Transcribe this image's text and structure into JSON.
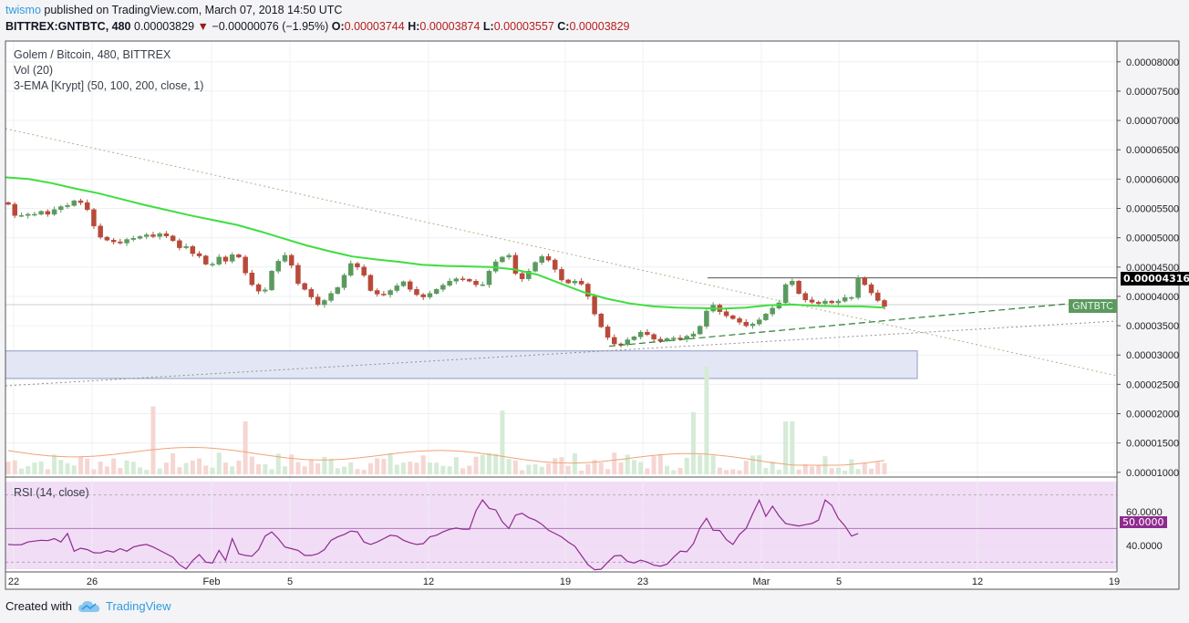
{
  "header": {
    "user": "twismo",
    "published_text": "published on TradingView.com, March 07, 2018 14:50 UTC",
    "symbol_line": "BITTREX:GNTBTC, 480",
    "last": "0.00003829",
    "change_arrow": "▼",
    "change": "−0.00000076 (−1.95%)",
    "o_label": "O:",
    "o_value": "0.00003744",
    "h_label": "H:",
    "h_value": "0.00003874",
    "l_label": "L:",
    "l_value": "0.00003557",
    "c_label": "C:",
    "c_value": "0.00003829"
  },
  "legend": {
    "line1": "Golem / Bitcoin, 480, BITTREX",
    "line2": "Vol (20)",
    "line3": "3-EMA [Krypt] (50, 100, 200, close, 1)"
  },
  "rsi_legend": "RSI (14, close)",
  "price_tags": {
    "horizontal_level": "0.00004316",
    "symbol_tag": "GNTBTC",
    "rsi_value": "50.0000"
  },
  "footer": {
    "created_with": "Created with",
    "brand": "TradingView"
  },
  "colors": {
    "up": "#5b9a5f",
    "down": "#b84a3a",
    "ema": "#3ede3e",
    "rsi": "#8e2a8e",
    "rsi_band": "#f1ddf6",
    "zone_fill": "#e3e7f5",
    "zone_stroke": "#8f9bc4"
  },
  "chart_data": [
    {
      "type": "candlestick",
      "title": "Golem / Bitcoin, 480, BITTREX",
      "y_axis_ticks": [
        "0.00008000",
        "0.00007500",
        "0.00007000",
        "0.00006500",
        "0.00006000",
        "0.00005500",
        "0.00005000",
        "0.00004500",
        "0.00004000",
        "0.00003500",
        "0.00003000",
        "0.00002500",
        "0.00002000",
        "0.00001500",
        "0.00001000"
      ],
      "x_axis_ticks": [
        "22",
        "26",
        "Feb",
        "5",
        "12",
        "19",
        "23",
        "Mar",
        "5",
        "12",
        "19"
      ],
      "ylim": [
        9.35e-06,
        8.354e-05
      ],
      "close": [
        5.57e-05,
        5.38e-05,
        5.38e-05,
        5.4e-05,
        5.4e-05,
        5.45e-05,
        5.4e-05,
        5.48e-05,
        5.53e-05,
        5.55e-05,
        5.63e-05,
        5.6e-05,
        5.48e-05,
        5.2e-05,
        5.01e-05,
        4.96e-05,
        4.93e-05,
        4.91e-05,
        4.97e-05,
        4.99e-05,
        5.02e-05,
        5.05e-05,
        5.02e-05,
        5.07e-05,
        5.03e-05,
        4.95e-05,
        4.83e-05,
        4.85e-05,
        4.73e-05,
        4.69e-05,
        4.55e-05,
        4.55e-05,
        4.67e-05,
        4.6e-05,
        4.71e-05,
        4.67e-05,
        4.4e-05,
        4.2e-05,
        4.09e-05,
        4.11e-05,
        4.43e-05,
        4.6e-05,
        4.7e-05,
        4.53e-05,
        4.22e-05,
        4.12e-05,
        3.99e-05,
        3.86e-05,
        3.93e-05,
        4.05e-05,
        4.15e-05,
        4.36e-05,
        4.56e-05,
        4.5e-05,
        4.36e-05,
        4.1e-05,
        4.04e-05,
        4.03e-05,
        4.1e-05,
        4.18e-05,
        4.25e-05,
        4.12e-05,
        4.03e-05,
        3.99e-05,
        4.05e-05,
        4.12e-05,
        4.19e-05,
        4.26e-05,
        4.3e-05,
        4.29e-05,
        4.26e-05,
        4.2e-05,
        4.2e-05,
        4.43e-05,
        4.59e-05,
        4.67e-05,
        4.7e-05,
        4.39e-05,
        4.3e-05,
        4.43e-05,
        4.58e-05,
        4.68e-05,
        4.62e-05,
        4.46e-05,
        4.28e-05,
        4.23e-05,
        4.26e-05,
        4.21e-05,
        4e-05,
        3.7e-05,
        3.48e-05,
        3.3e-05,
        3.19e-05,
        3.18e-05,
        3.26e-05,
        3.31e-05,
        3.39e-05,
        3.35e-05,
        3.27e-05,
        3.24e-05,
        3.28e-05,
        3.29e-05,
        3.27e-05,
        3.32e-05,
        3.36e-05,
        3.49e-05,
        3.75e-05,
        3.85e-05,
        3.74e-05,
        3.67e-05,
        3.62e-05,
        3.56e-05,
        3.5e-05,
        3.53e-05,
        3.6e-05,
        3.7e-05,
        3.8e-05,
        3.89e-05,
        4.2e-05,
        4.26e-05,
        4.05e-05,
        3.94e-05,
        3.9e-05,
        3.88e-05,
        3.92e-05,
        3.89e-05,
        3.92e-05,
        3.98e-05,
        3.98e-05,
        4.32e-05,
        4.2e-05,
        4.06e-05,
        3.93e-05,
        3.83e-05
      ],
      "ema": [
        6.03e-05,
        6e-05,
        5.93e-05,
        5.84e-05,
        5.76e-05,
        5.66e-05,
        5.56e-05,
        5.47e-05,
        5.38e-05,
        5.3e-05,
        5.22e-05,
        5.11e-05,
        4.99e-05,
        4.87e-05,
        4.77e-05,
        4.68e-05,
        4.63e-05,
        4.59e-05,
        4.54e-05,
        4.52e-05,
        4.51e-05,
        4.5e-05,
        4.46e-05,
        4.37e-05,
        4.22e-05,
        4.07e-05,
        3.96e-05,
        3.88e-05,
        3.83e-05,
        3.81e-05,
        3.8e-05,
        3.79e-05,
        3.81e-05,
        3.85e-05,
        3.86e-05,
        3.84e-05,
        3.83e-05,
        3.83e-05,
        3.81e-05
      ],
      "volume_ma_label": "Vol (20)",
      "trendlines": "descending dotted line from top-left; dashed green ascending support; horizontal resistance at 0.00004316; shaded demand zone around 0.00002600–0.00003070"
    },
    {
      "type": "line",
      "title": "RSI (14, close)",
      "y_axis_ticks": [
        "60.0000",
        "40.0000"
      ],
      "ylim": [
        24.2,
        79.5
      ],
      "values": [
        40.5,
        40.3,
        40.4,
        42,
        42.5,
        43,
        42.8,
        44,
        42,
        47,
        36.5,
        38.3,
        37.5,
        35.6,
        35.5,
        36.8,
        36,
        38,
        36.5,
        39,
        40,
        40.5,
        39,
        37,
        35,
        33,
        28.5,
        26,
        31,
        34.5,
        30,
        29.5,
        37,
        31,
        44,
        35,
        34,
        33.5,
        37.5,
        45.5,
        48,
        44,
        39,
        38,
        37,
        34,
        34,
        35,
        37.5,
        43,
        45,
        46.5,
        48.5,
        48,
        42,
        40.5,
        42,
        44,
        46,
        45.5,
        43,
        41.5,
        40.5,
        41,
        45,
        46,
        48,
        49.5,
        50.3,
        49.6,
        49.6,
        60.5,
        67,
        62,
        61,
        54,
        50,
        58,
        59,
        56.5,
        55,
        52.5,
        49,
        47,
        45,
        42,
        39.5,
        34,
        28.5,
        25.5,
        25.8,
        30,
        33.7,
        34,
        30.5,
        29.5,
        31.2,
        30,
        28.2,
        27.6,
        28.8,
        33,
        36.5,
        36.2,
        41,
        50.5,
        56,
        49,
        48.8,
        43.4,
        40.5,
        46.5,
        50,
        58.8,
        66.8,
        57.2,
        63.3,
        57.5,
        53,
        52.2,
        51.5,
        52.3,
        53,
        55,
        67,
        63.8,
        56,
        51.5,
        45.5,
        47
      ]
    }
  ]
}
